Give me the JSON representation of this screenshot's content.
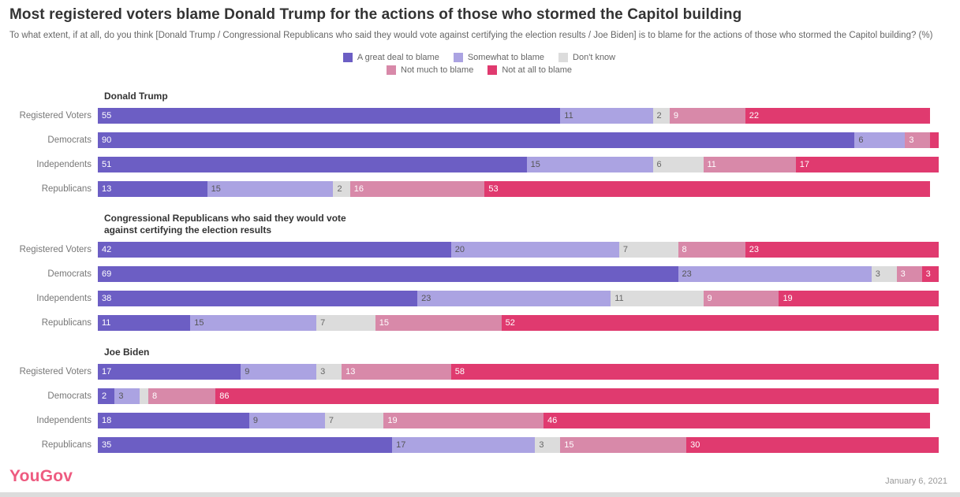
{
  "header": {
    "title": "Most registered voters blame Donald Trump for the actions of those who stormed the Capitol building",
    "subtitle": "To what extent, if at all, do you think [Donald Trump / Congressional Republicans who said they would vote against certifying the election results / Joe Biden] is to blame for the actions of those who stormed the Capitol building? (%)"
  },
  "legend": {
    "rows": [
      [
        0,
        1,
        2
      ],
      [
        3,
        4
      ]
    ],
    "items": [
      {
        "label": "A great deal to blame",
        "color": "#6c5ec4"
      },
      {
        "label": "Somewhat to blame",
        "color": "#aba3e2"
      },
      {
        "label": "Don't know",
        "color": "#dcdcdc"
      },
      {
        "label": "Not much to blame",
        "color": "#d889a9"
      },
      {
        "label": "Not at all to blame",
        "color": "#e03a6f"
      }
    ]
  },
  "footer": {
    "brand": "YouGov",
    "brand_color": "#ee5b80",
    "date": "January 6, 2021"
  },
  "chart_data": {
    "type": "bar",
    "stacked": true,
    "orientation": "horizontal",
    "unit": "%",
    "xlim": [
      0,
      100
    ],
    "grid": false,
    "legend_position": "top-center",
    "series_names": [
      "A great deal to blame",
      "Somewhat to blame",
      "Don't know",
      "Not much to blame",
      "Not at all to blame"
    ],
    "colors": [
      "#6c5ec4",
      "#aba3e2",
      "#dcdcdc",
      "#d889a9",
      "#e03a6f"
    ],
    "label_colors": [
      "#ffffff",
      "#555555",
      "#666666",
      "#ffffff",
      "#ffffff"
    ],
    "label_min_value": 2,
    "groups": [
      {
        "title": "Donald Trump",
        "categories": [
          "Registered Voters",
          "Democrats",
          "Independents",
          "Republicans"
        ],
        "rows": [
          [
            55,
            11,
            2,
            9,
            22
          ],
          [
            90,
            6,
            0,
            3,
            1
          ],
          [
            51,
            15,
            6,
            11,
            17
          ],
          [
            13,
            15,
            2,
            16,
            53
          ]
        ]
      },
      {
        "title": "Congressional Republicans who said they would vote against certifying the election results",
        "categories": [
          "Registered Voters",
          "Democrats",
          "Independents",
          "Republicans"
        ],
        "rows": [
          [
            42,
            20,
            7,
            8,
            23
          ],
          [
            69,
            23,
            3,
            3,
            3
          ],
          [
            38,
            23,
            11,
            9,
            19
          ],
          [
            11,
            15,
            7,
            15,
            52
          ]
        ]
      },
      {
        "title": "Joe Biden",
        "categories": [
          "Registered Voters",
          "Democrats",
          "Independents",
          "Republicans"
        ],
        "rows": [
          [
            17,
            9,
            3,
            13,
            58
          ],
          [
            2,
            3,
            1,
            8,
            86
          ],
          [
            18,
            9,
            7,
            19,
            46
          ],
          [
            35,
            17,
            3,
            15,
            30
          ]
        ]
      }
    ]
  }
}
